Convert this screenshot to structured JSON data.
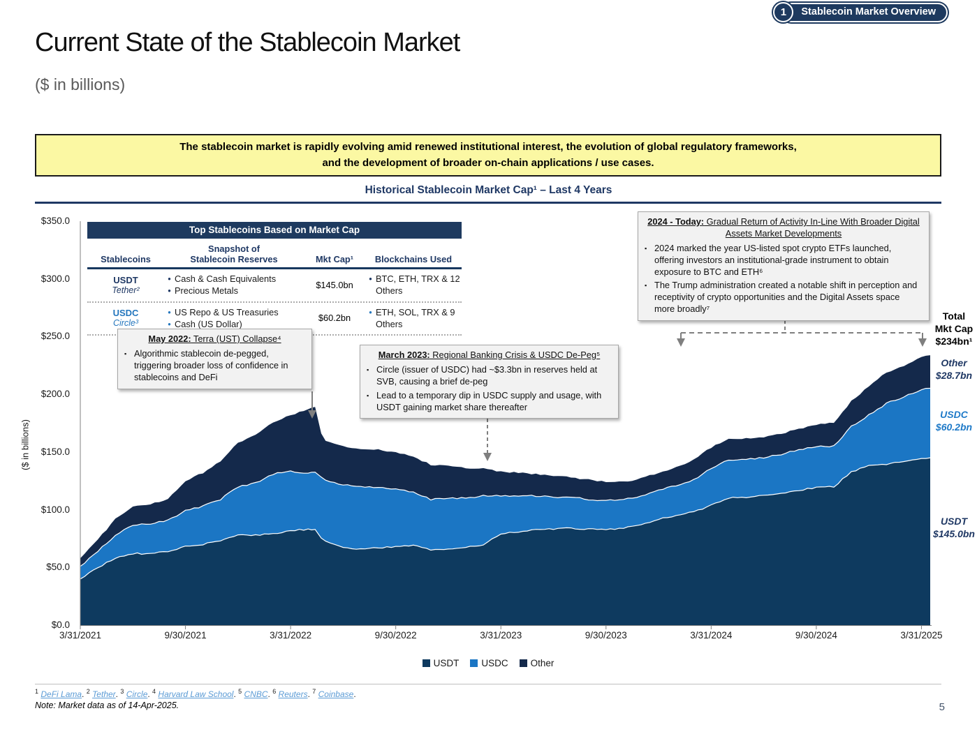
{
  "badge": {
    "number": "1",
    "label": "Stablecoin Market Overview"
  },
  "header": {
    "title": "Current State of the Stablecoin Market",
    "subtitle": "($ in billions)"
  },
  "callout": {
    "line1": "The stablecoin market is rapidly evolving amid renewed institutional interest, the evolution of global regulatory frameworks,",
    "line2": "and the development of broader on-chain applications / use cases."
  },
  "chart_title": "Historical Stablecoin Market Cap¹ – Last 4 Years",
  "table": {
    "title": "Top Stablecoins Based on Market Cap",
    "columns": [
      "Stablecoins",
      "Snapshot of\nStablecoin Reserves",
      "Mkt Cap¹",
      "Blockchains Used"
    ],
    "rows": [
      {
        "name": "USDT",
        "issuer": "Tether²",
        "accent": "#1F3864",
        "reserves": [
          "Cash & Cash Equivalents",
          "Precious Metals"
        ],
        "mkt_cap": "$145.0bn",
        "blockchains": "BTC, ETH, TRX & 12 Others"
      },
      {
        "name": "USDC",
        "issuer": "Circle³",
        "accent": "#2577BE",
        "reserves": [
          "US Repo & US Treasuries",
          "Cash (US Dollar)"
        ],
        "mkt_cap": "$60.2bn",
        "blockchains": "ETH, SOL, TRX & 9 Others"
      }
    ]
  },
  "annotations": [
    {
      "title_prefix": "May 2022:",
      "title_rest": " Terra (UST) Collapse⁴",
      "bullets": [
        "Algorithmic stablecoin de-pegged, triggering broader loss of confidence in stablecoins and DeFi"
      ]
    },
    {
      "title_prefix": "March 2023:",
      "title_rest": " Regional Banking Crisis & USDC De-Peg⁵",
      "bullets": [
        "Circle (issuer of USDC) had ~$3.3bn in reserves held at SVB, causing a brief de-peg",
        "Lead to a temporary dip in USDC supply and usage, with USDT gaining market share thereafter"
      ]
    },
    {
      "title_prefix": "2024 - Today:",
      "title_rest": " Gradual Return of Activity In-Line With Broader Digital Assets Market Developments",
      "bullets": [
        "2024 marked the year US-listed spot crypto ETFs launched, offering investors an institutional-grade instrument to obtain exposure to BTC and ETH⁶",
        "The Trump administration created a notable shift in perception and receptivity of crypto opportunities and the Digital Assets space more broadly⁷"
      ]
    }
  ],
  "right_labels": {
    "total": {
      "line1": "Total",
      "line2": "Mkt Cap",
      "line3": "$234bn¹"
    },
    "other": {
      "name": "Other",
      "value": "$28.7bn"
    },
    "usdc": {
      "name": "USDC",
      "value": "$60.2bn"
    },
    "usdt": {
      "name": "USDT",
      "value": "$145.0bn"
    }
  },
  "footnotes": {
    "sources": [
      {
        "sup": "1",
        "text": "DeFi Lama"
      },
      {
        "sup": "2",
        "text": "Tether"
      },
      {
        "sup": "3",
        "text": "Circle"
      },
      {
        "sup": "4",
        "text": "Harvard Law School"
      },
      {
        "sup": "5",
        "text": "CNBC"
      },
      {
        "sup": "6",
        "text": "Reuters"
      },
      {
        "sup": "7",
        "text": "Coinbase"
      }
    ],
    "note": "Note: Market data as of 14-Apr-2025."
  },
  "page_number": "5",
  "chart_data": {
    "type": "area",
    "stacked": true,
    "title": "Historical Stablecoin Market Cap¹ – Last 4 Years",
    "ylabel": "($ in billions)",
    "ylim": [
      0,
      350
    ],
    "grid": false,
    "legend_position": "bottom",
    "x_unit": "months since 3/31/2021 (last point = 4/14/2025)",
    "x": [
      0,
      1,
      2,
      3,
      4,
      5,
      6,
      7,
      8,
      9,
      10,
      11,
      12,
      13,
      13.4,
      13.75,
      14,
      15,
      16,
      17,
      18,
      19,
      20,
      21,
      22,
      23,
      24,
      25,
      26,
      27,
      28,
      29,
      30,
      31,
      32,
      33,
      34,
      35,
      36,
      37,
      38,
      39,
      40,
      41,
      42,
      43,
      44,
      45,
      46,
      47,
      48,
      48.5
    ],
    "series": [
      {
        "name": "USDT",
        "color": "#0E3A5F",
        "values": [
          40,
          50,
          58,
          62,
          62,
          64,
          68,
          70,
          73,
          78,
          78,
          79,
          82,
          83,
          83,
          76,
          73,
          67,
          66,
          67,
          68,
          69,
          65,
          66,
          67,
          70,
          79,
          81,
          83,
          83,
          84,
          83,
          83,
          84,
          87,
          92,
          95,
          98,
          104,
          110,
          111,
          112,
          114,
          117,
          119,
          120,
          133,
          138,
          139,
          142,
          144,
          145
        ]
      },
      {
        "name": "USDC",
        "color": "#1B76C4",
        "values": [
          11,
          14,
          20,
          25,
          26,
          27,
          31,
          33,
          36,
          42,
          45,
          52,
          51,
          49,
          50,
          52,
          52,
          55,
          54,
          52,
          50,
          46,
          44,
          44,
          43,
          42,
          33,
          31,
          29,
          28,
          27,
          26,
          25,
          25,
          25,
          25,
          26,
          28,
          32,
          33,
          33,
          33,
          34,
          35,
          36,
          35,
          39,
          44,
          53,
          56,
          60,
          60.2
        ]
      },
      {
        "name": "Other",
        "color": "#14294B",
        "values": [
          7,
          10,
          14,
          16,
          17,
          18,
          26,
          29,
          33,
          38,
          42,
          45,
          49,
          55,
          56,
          38,
          35,
          33,
          33,
          33,
          32,
          31,
          30,
          28,
          26,
          24,
          21,
          20,
          19,
          18,
          17,
          17,
          16,
          15,
          15,
          15,
          16,
          17,
          18,
          18,
          18,
          18,
          18,
          18,
          19,
          20,
          22,
          25,
          27,
          27,
          28,
          28.7
        ]
      }
    ],
    "x_ticks": [
      {
        "t": 0,
        "label": "3/31/2021"
      },
      {
        "t": 6,
        "label": "9/30/2021"
      },
      {
        "t": 12,
        "label": "3/31/2022"
      },
      {
        "t": 18,
        "label": "9/30/2022"
      },
      {
        "t": 24,
        "label": "3/31/2023"
      },
      {
        "t": 30,
        "label": "9/30/2023"
      },
      {
        "t": 36,
        "label": "3/31/2024"
      },
      {
        "t": 42,
        "label": "9/30/2024"
      },
      {
        "t": 48,
        "label": "3/31/2025"
      }
    ],
    "y_ticks": [
      {
        "v": 0,
        "label": "$0.0"
      },
      {
        "v": 50,
        "label": "$50.0"
      },
      {
        "v": 100,
        "label": "$100.0"
      },
      {
        "v": 150,
        "label": "$150.0"
      },
      {
        "v": 200,
        "label": "$200.0"
      },
      {
        "v": 250,
        "label": "$250.0"
      },
      {
        "v": 300,
        "label": "$300.0"
      },
      {
        "v": 350,
        "label": "$350.0"
      }
    ],
    "end_values": {
      "USDT": 145.0,
      "USDC": 60.2,
      "Other": 28.7,
      "total": 234
    }
  }
}
